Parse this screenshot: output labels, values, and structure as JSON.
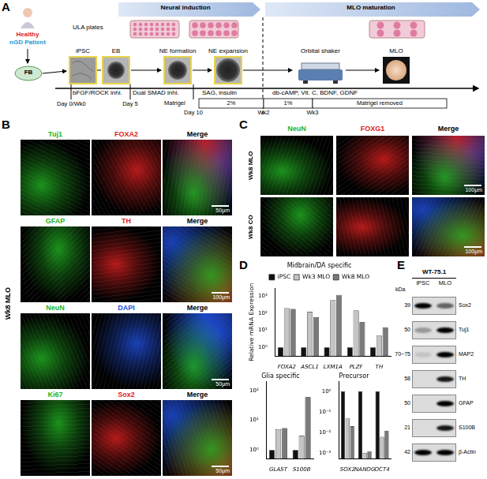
{
  "panel_a": {
    "letter": "A",
    "phases": [
      "Neural induction",
      "MLO maturation"
    ],
    "sources": [
      {
        "text": "Healthy",
        "color": "#e02020"
      },
      {
        "text": "nGD Patient",
        "color": "#1a9ad6"
      }
    ],
    "plates": "ULA plates",
    "fibroblast": "FB",
    "stages": [
      "iPSC",
      "EB",
      "NE formation",
      "NE expansion",
      "Orbital shaker",
      "MLO"
    ],
    "treatments": [
      "bFGF/ROCK inhi.",
      "Dual SMAD inhi.",
      "SAG, insulin",
      "db-cAMP, Vit. C, BDNF, GDNF"
    ],
    "timepoints": [
      "Day 0/Wk0",
      "Day 5",
      "Day 10",
      "Wk2",
      "Wk3"
    ],
    "matrigel": {
      "label": "Matrigel",
      "steps": [
        "2%",
        "1%",
        "Matrigel removed"
      ]
    }
  },
  "panel_b": {
    "letter": "B",
    "sample": "Wk8 MLO",
    "rows": [
      {
        "stains": [
          {
            "name": "Tuj1",
            "color": "#22b522"
          },
          {
            "name": "FOXA2",
            "color": "#e02020"
          },
          {
            "name": "Merge",
            "color": "#000000"
          }
        ],
        "scale_bar": "50μm"
      },
      {
        "stains": [
          {
            "name": "GFAP",
            "color": "#22b522"
          },
          {
            "name": "TH",
            "color": "#e02020"
          },
          {
            "name": "Merge",
            "color": "#000000"
          }
        ],
        "scale_bar": "100μm"
      },
      {
        "stains": [
          {
            "name": "NeuN",
            "color": "#22b522"
          },
          {
            "name": "DAPI",
            "color": "#2050e0"
          },
          {
            "name": "Merge",
            "color": "#000000"
          }
        ],
        "scale_bar": "50μm"
      },
      {
        "stains": [
          {
            "name": "Ki67",
            "color": "#22b522"
          },
          {
            "name": "Sox2",
            "color": "#e02020"
          },
          {
            "name": "Merge",
            "color": "#000000"
          }
        ],
        "scale_bar": "50μm"
      }
    ]
  },
  "panel_c": {
    "letter": "C",
    "stains": [
      {
        "name": "NeuN",
        "color": "#22b522"
      },
      {
        "name": "FOXG1",
        "color": "#e02020"
      },
      {
        "name": "Merge",
        "color": "#000000"
      }
    ],
    "rows": [
      {
        "sample": "Wk8 MLO",
        "scale_bar": "100μm"
      },
      {
        "sample": "Wk8 CO",
        "scale_bar": "100μm"
      }
    ]
  },
  "panel_d": {
    "letter": "D"
  },
  "chart_data": [
    {
      "type": "bar",
      "title": "Midbrain/DA specific",
      "y_label": "Relative mRNA Expression",
      "categories": [
        "FOXA2",
        "ASCL1",
        "LXM1A",
        "PLZF",
        "TH"
      ],
      "series": [
        {
          "name": "iPSC",
          "color": "#111111",
          "values": [
            1,
            1,
            1,
            1,
            1
          ]
        },
        {
          "name": "Wk3 MLO",
          "color": "#c4c4c4",
          "values": [
            200,
            120,
            600,
            150,
            5
          ]
        },
        {
          "name": "Wk8 MLO",
          "color": "#7a7a7a",
          "values": [
            180,
            60,
            1200,
            30,
            15
          ]
        }
      ],
      "log": "y",
      "ylim": [
        0.3,
        3000
      ],
      "yticks": [
        {
          "value": 1,
          "label": "10⁰"
        },
        {
          "value": 10,
          "label": "10¹"
        },
        {
          "value": 100,
          "label": "10²"
        },
        {
          "value": 1000,
          "label": "10³"
        }
      ],
      "grid": false,
      "legend": "top"
    },
    {
      "type": "bar",
      "title": "Glia specific",
      "categories": [
        "GLAST",
        "S100B"
      ],
      "series": [
        {
          "name": "iPSC",
          "color": "#111111",
          "values": [
            1,
            1
          ]
        },
        {
          "name": "Wk3 MLO",
          "color": "#c4c4c4",
          "values": [
            5,
            3
          ]
        },
        {
          "name": "Wk8 MLO",
          "color": "#7a7a7a",
          "values": [
            5.5,
            60
          ]
        }
      ],
      "log": "y",
      "ylim": [
        0.5,
        200
      ],
      "yticks": [
        {
          "value": 1,
          "label": "10⁰"
        },
        {
          "value": 10,
          "label": "10¹"
        },
        {
          "value": 100,
          "label": "10²"
        }
      ],
      "grid": false
    },
    {
      "type": "bar",
      "title": "Precursor",
      "categories": [
        "SOX2",
        "NANOG",
        "OCT4"
      ],
      "series": [
        {
          "name": "iPSC",
          "color": "#111111",
          "values": [
            1,
            1,
            1
          ]
        },
        {
          "name": "Wk3 MLO",
          "color": "#c4c4c4",
          "values": [
            0.05,
            0.001,
            0.006
          ]
        },
        {
          "name": "Wk8 MLO",
          "color": "#7a7a7a",
          "values": [
            0.02,
            0.0012,
            0.012
          ]
        }
      ],
      "log": "y",
      "ylim": [
        0.0005,
        3
      ],
      "yticks": [
        {
          "value": 0.001,
          "label": "10⁻³"
        },
        {
          "value": 0.01,
          "label": "10⁻²"
        },
        {
          "value": 0.1,
          "label": "10⁻¹"
        },
        {
          "value": 1,
          "label": "10⁰"
        }
      ],
      "grid": false
    }
  ],
  "panel_e": {
    "letter": "E",
    "sample": "WT-75.1",
    "lanes": [
      "iPSC",
      "MLO"
    ],
    "unit": "kDa",
    "rows": [
      {
        "kda": "39",
        "protein": "Sox2",
        "intensity": [
          1,
          0.55
        ]
      },
      {
        "kda": "50",
        "protein": "Tuj1",
        "intensity": [
          0.3,
          1
        ]
      },
      {
        "kda": "70~75",
        "protein": "MAP2",
        "intensity": [
          0.1,
          1
        ]
      },
      {
        "kda": "58",
        "protein": "TH",
        "intensity": [
          0,
          0.9
        ]
      },
      {
        "kda": "50",
        "protein": "GFAP",
        "intensity": [
          0,
          1
        ]
      },
      {
        "kda": "21",
        "protein": "S100B",
        "intensity": [
          0,
          0.9
        ]
      },
      {
        "kda": "42",
        "protein": "β-Actin",
        "intensity": [
          1,
          1
        ]
      }
    ]
  }
}
